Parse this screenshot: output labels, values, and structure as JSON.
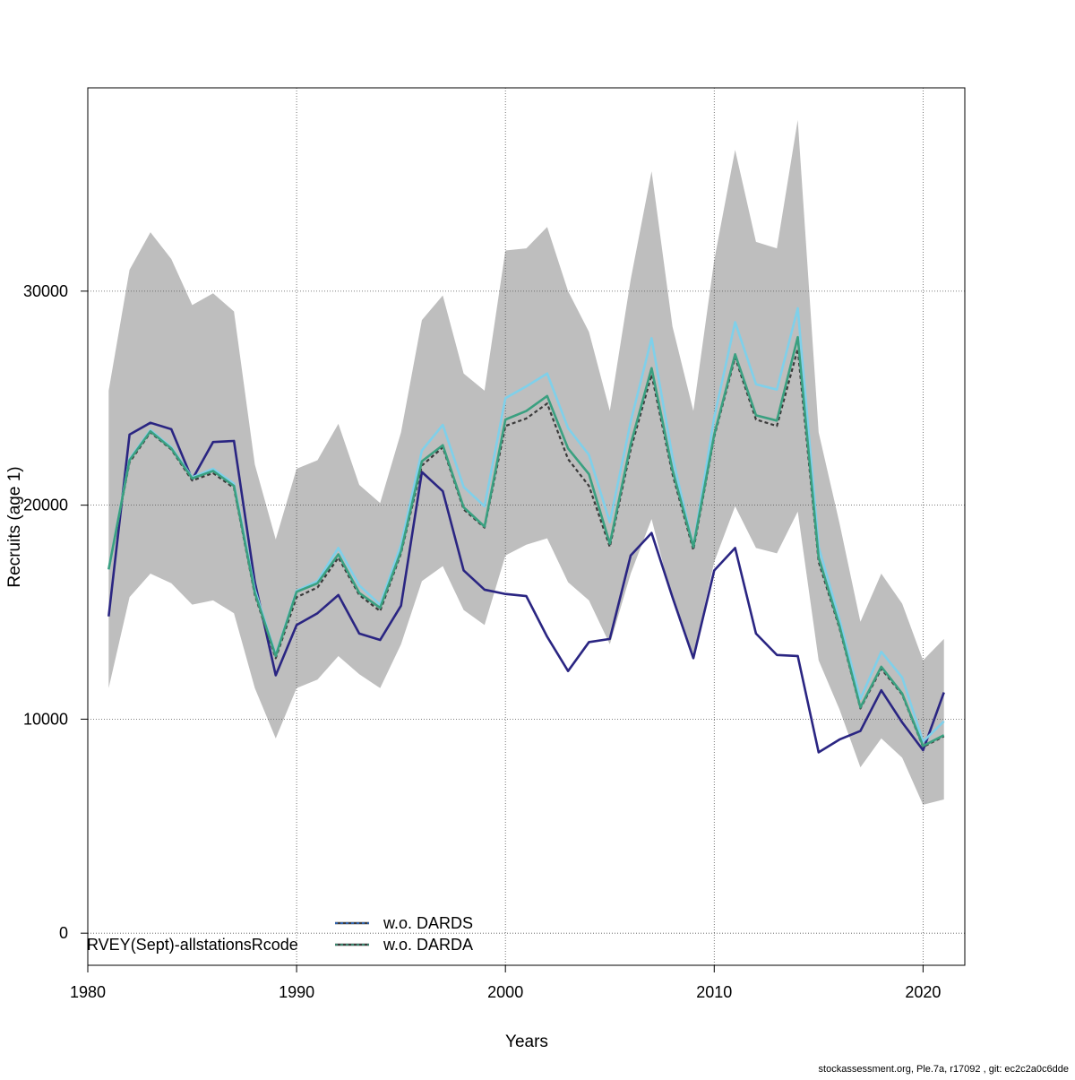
{
  "chart_data": {
    "type": "line",
    "xlabel": "Years",
    "ylabel": "Recruits (age 1)",
    "xlim": [
      1980,
      2022
    ],
    "ylim": [
      -1500,
      39500
    ],
    "xticks": [
      1980,
      1990,
      2000,
      2010,
      2020
    ],
    "yticks": [
      0,
      10000,
      20000,
      30000
    ],
    "grid": true,
    "years": [
      1981,
      1982,
      1983,
      1984,
      1985,
      1986,
      1987,
      1988,
      1989,
      1990,
      1991,
      1992,
      1993,
      1994,
      1995,
      1996,
      1997,
      1998,
      1999,
      2000,
      2001,
      2002,
      2003,
      2004,
      2005,
      2006,
      2007,
      2008,
      2009,
      2010,
      2011,
      2012,
      2013,
      2014,
      2015,
      2016,
      2017,
      2018,
      2019,
      2020,
      2021
    ],
    "band": {
      "upper": [
        25350,
        31000,
        32750,
        31500,
        29350,
        29900,
        29050,
        21900,
        18400,
        21700,
        22100,
        23800,
        20950,
        20100,
        23400,
        28650,
        29800,
        26150,
        25350,
        31900,
        32000,
        33000,
        30000,
        28100,
        24400,
        30550,
        35600,
        28350,
        24400,
        31450,
        36600,
        32300,
        32000,
        38000,
        23400,
        19150,
        14550,
        16800,
        15400,
        12750,
        13750
      ],
      "lower": [
        11450,
        15700,
        16800,
        16350,
        15350,
        15550,
        14950,
        11450,
        9100,
        11450,
        11850,
        12950,
        12100,
        11450,
        13500,
        16450,
        17150,
        15100,
        14400,
        17650,
        18150,
        18450,
        16400,
        15550,
        13500,
        16800,
        19350,
        15550,
        12950,
        17350,
        19950,
        18000,
        17750,
        19700,
        12750,
        10450,
        7750,
        9100,
        8200,
        6000,
        6250
      ]
    },
    "series": [
      {
        "color": "#2a2582",
        "width": 2.6,
        "values": [
          14800,
          23300,
          23850,
          23550,
          21200,
          22950,
          23000,
          16400,
          12050,
          14400,
          14950,
          15800,
          14000,
          13700,
          15300,
          21550,
          20650,
          16950,
          16050,
          15850,
          15750,
          13850,
          12250,
          13600,
          13750,
          17650,
          18700,
          15700,
          12850,
          16950,
          18000,
          14000,
          13000,
          12950,
          8450,
          9050,
          9450,
          11350,
          9850,
          8550,
          11250
        ]
      },
      {
        "color": "#3a3a3a",
        "width": 2.2,
        "dash": "4,3",
        "values": [
          17000,
          22000,
          23400,
          22600,
          21150,
          21500,
          20800,
          15800,
          12850,
          15700,
          16150,
          17550,
          15800,
          15050,
          17750,
          21850,
          22700,
          19800,
          18950,
          23700,
          24050,
          24750,
          22150,
          20900,
          18050,
          22600,
          26100,
          21450,
          17900,
          23200,
          26900,
          24000,
          23700,
          27300,
          17350,
          14250,
          10500,
          12350,
          11150,
          8700,
          9200
        ]
      },
      {
        "color": "#7fd0ea",
        "width": 2.6,
        "values": [
          17000,
          22150,
          23500,
          22700,
          21300,
          21700,
          21000,
          16050,
          13000,
          16000,
          16450,
          18000,
          16250,
          15350,
          18150,
          22550,
          23750,
          20850,
          19950,
          25000,
          25550,
          26150,
          23600,
          22350,
          19200,
          23900,
          27800,
          22250,
          18050,
          24100,
          28550,
          25650,
          25400,
          29200,
          18050,
          14650,
          10950,
          13150,
          11950,
          8950,
          9900
        ]
      },
      {
        "color": "#3aa080",
        "width": 2.6,
        "values": [
          17000,
          22100,
          23450,
          22650,
          21250,
          21600,
          20900,
          15900,
          12950,
          15950,
          16350,
          17700,
          15900,
          15200,
          17850,
          22050,
          22800,
          19900,
          19000,
          24000,
          24400,
          25100,
          22650,
          21450,
          18200,
          22850,
          26400,
          21650,
          18050,
          23300,
          27050,
          24200,
          23950,
          27850,
          17550,
          14350,
          10550,
          12450,
          11200,
          8750,
          9250
        ]
      }
    ],
    "legend": [
      {
        "label": "w.o. DARDS",
        "color": "#3a3a3a",
        "dash_color": "#2a6fd6"
      },
      {
        "label": "w.o. DARDA",
        "color": "#3a3a3a",
        "dash_color": "#3aa080"
      }
    ],
    "corner_text": "RVEY(Sept)-allstationsRcode"
  },
  "footer": "stockassessment.org, Ple.7a, r17092 , git: ec2c2a0c6dde"
}
